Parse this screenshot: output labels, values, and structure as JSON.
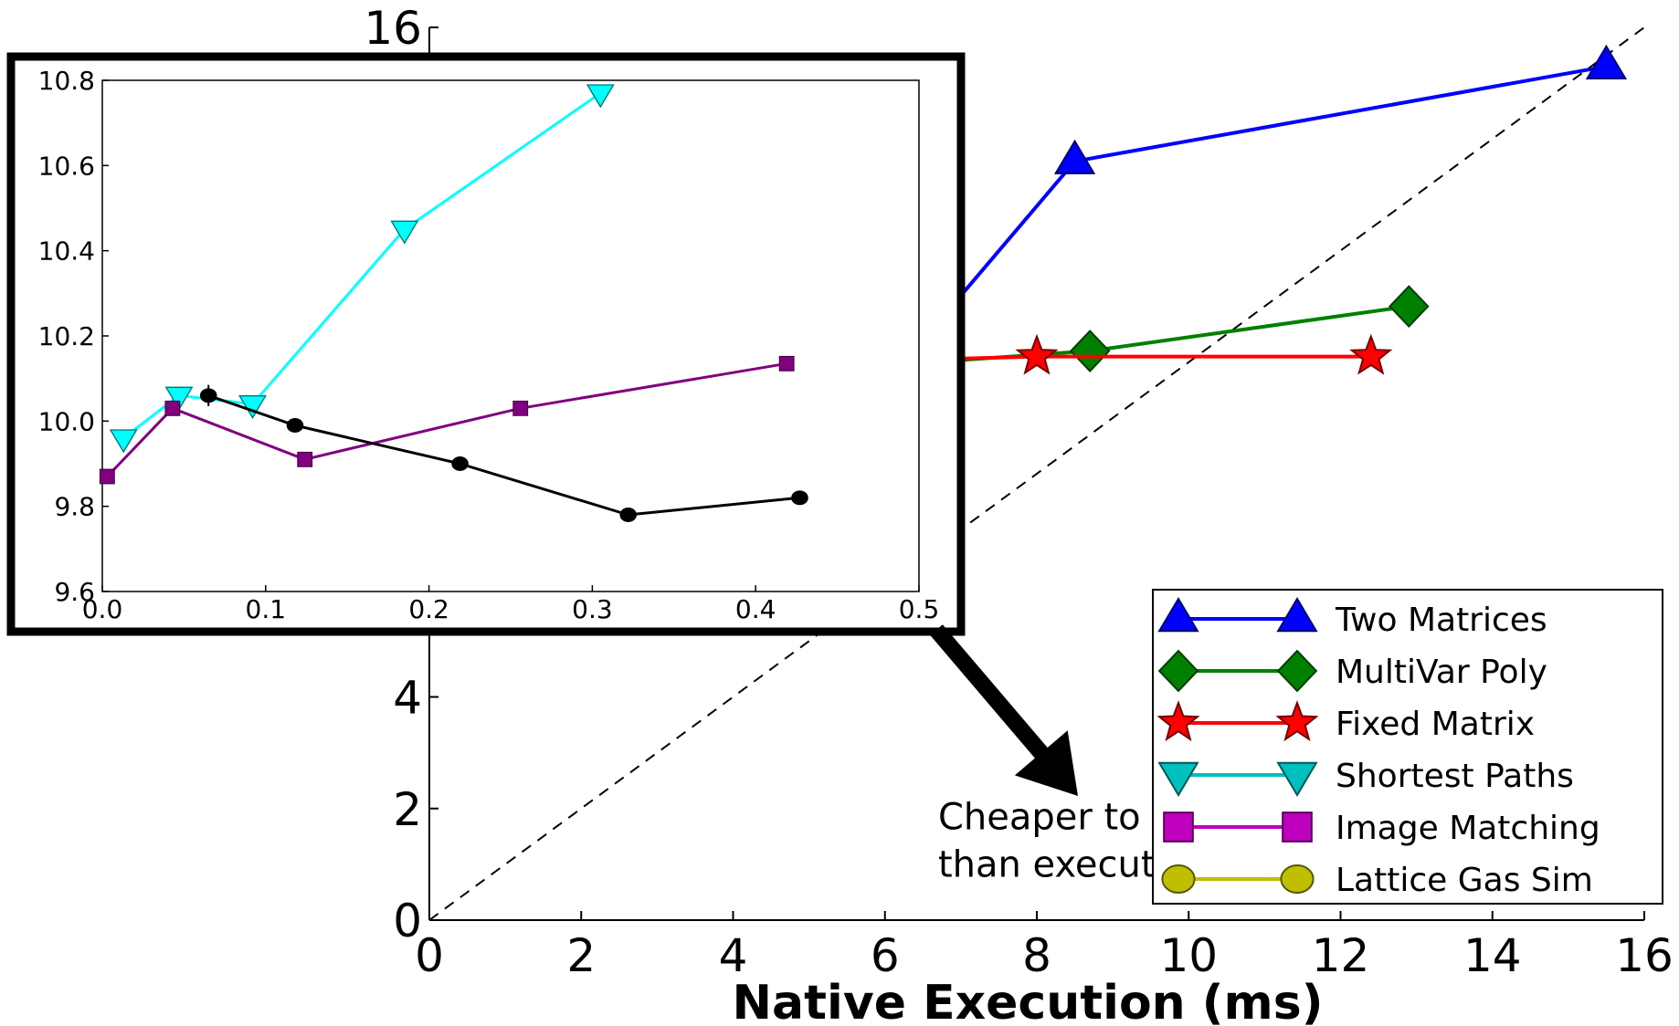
{
  "chart_data": [
    {
      "type": "line",
      "xlabel": "Native Execution (ms)",
      "ylabel": "",
      "xlim": [
        0,
        16
      ],
      "ylim": [
        0,
        16
      ],
      "xticks": [
        "0",
        "2",
        "4",
        "6",
        "8",
        "10",
        "12",
        "14",
        "16"
      ],
      "yticks": [
        "0",
        "2",
        "4",
        "16"
      ],
      "grid": false,
      "legend_position": "bottom-right",
      "reference_line": {
        "style": "dashed",
        "color": "#000000",
        "points": [
          [
            0,
            0
          ],
          [
            16,
            16
          ]
        ]
      },
      "annotation": {
        "lines": [
          "Cheaper to verify",
          "than execute locally"
        ],
        "at": [
          6.7,
          1.2
        ]
      },
      "series": [
        {
          "name": "Two Matrices",
          "color": "#0000ff",
          "marker": "triangle-up",
          "x": [
            6.6,
            8.5,
            15.5
          ],
          "y": [
            10.55,
            13.6,
            15.3
          ]
        },
        {
          "name": "MultiVar Poly",
          "color": "#008000",
          "marker": "diamond",
          "x": [
            6.6,
            8.7,
            12.9
          ],
          "y": [
            10.0,
            10.2,
            11.0
          ]
        },
        {
          "name": "Fixed Matrix",
          "color": "#ff0000",
          "marker": "star",
          "x": [
            6.6,
            8.0,
            12.4
          ],
          "y": [
            10.05,
            10.1,
            10.1
          ]
        },
        {
          "name": "Shortest Paths",
          "color": "#00bfbf",
          "marker": "triangle-down",
          "x": [],
          "y": []
        },
        {
          "name": "Image Matching",
          "color": "#bf00bf",
          "marker": "square",
          "x": [],
          "y": []
        },
        {
          "name": "Lattice Gas Sim",
          "color": "#bfbf00",
          "marker": "circle",
          "x": [],
          "y": []
        }
      ]
    },
    {
      "type": "line",
      "inset": true,
      "xlim": [
        0.0,
        0.5
      ],
      "ylim": [
        9.6,
        10.8
      ],
      "xticks": [
        "0.0",
        "0.1",
        "0.2",
        "0.3",
        "0.4",
        "0.5"
      ],
      "yticks": [
        "9.6",
        "9.8",
        "10.0",
        "10.2",
        "10.4",
        "10.6",
        "10.8"
      ],
      "series": [
        {
          "color": "#00ffff",
          "marker": "triangle-down",
          "x": [
            0.013,
            0.047,
            0.092,
            0.185,
            0.305
          ],
          "y": [
            9.96,
            10.06,
            10.04,
            10.45,
            10.77
          ]
        },
        {
          "color": "#800080",
          "marker": "square",
          "x": [
            0.003,
            0.043,
            0.124,
            0.256,
            0.419
          ],
          "y": [
            9.87,
            10.03,
            9.91,
            10.03,
            10.135
          ]
        },
        {
          "color": "#000000",
          "marker": "circle",
          "errorbars": true,
          "x": [
            0.065,
            0.118,
            0.219,
            0.322,
            0.427
          ],
          "y": [
            10.06,
            9.99,
            9.9,
            9.78,
            9.82
          ],
          "err": [
            0.025,
            0.015,
            0.015,
            0.005,
            0.005
          ]
        }
      ]
    }
  ]
}
